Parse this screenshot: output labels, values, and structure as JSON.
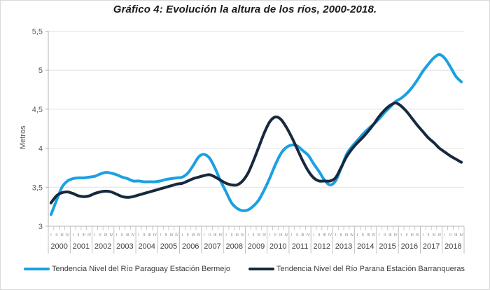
{
  "title": "Gráfico 4: Evolución la altura de los ríos, 2000-2018.",
  "chart_data": {
    "type": "line",
    "title": "Gráfico 4: Evolución la altura de los ríos, 2000-2018.",
    "ylabel": "Metros",
    "ylim": [
      3,
      5.5
    ],
    "ytick_step": 0.5,
    "ytick_labels_top_to_bottom": [
      "5,5",
      "5",
      "4,5",
      "4",
      "3,5",
      "3"
    ],
    "grid": "horizontal",
    "legend_position": "bottom",
    "x_unit": "quarterly, 4 points per year",
    "years": [
      "2000",
      "2001",
      "2002",
      "2003",
      "2004",
      "2005",
      "2006",
      "2007",
      "2008",
      "2009",
      "2010",
      "2011",
      "2012",
      "2013",
      "2014",
      "2015",
      "2016",
      "2017",
      "2018"
    ],
    "quarter_labels": [
      "I",
      "II",
      "III",
      "IV"
    ],
    "series": [
      {
        "name": "Tendencia Nivel del Río Paraguay Estación Bermejo",
        "color": "#1BA0E2",
        "values": [
          3.15,
          3.33,
          3.5,
          3.58,
          3.61,
          3.62,
          3.62,
          3.63,
          3.64,
          3.67,
          3.69,
          3.68,
          3.66,
          3.63,
          3.61,
          3.58,
          3.58,
          3.57,
          3.57,
          3.57,
          3.58,
          3.6,
          3.61,
          3.62,
          3.63,
          3.68,
          3.78,
          3.89,
          3.92,
          3.87,
          3.74,
          3.58,
          3.44,
          3.3,
          3.23,
          3.2,
          3.21,
          3.26,
          3.34,
          3.47,
          3.62,
          3.79,
          3.93,
          4.01,
          4.04,
          4.03,
          3.97,
          3.91,
          3.8,
          3.7,
          3.59,
          3.53,
          3.58,
          3.74,
          3.92,
          4.02,
          4.1,
          4.18,
          4.25,
          4.31,
          4.38,
          4.46,
          4.53,
          4.6,
          4.64,
          4.7,
          4.78,
          4.88,
          4.99,
          5.08,
          5.16,
          5.2,
          5.15,
          5.04,
          4.92,
          4.85
        ]
      },
      {
        "name": "Tendencia Nivel del Río Parana Estación Barranqueras",
        "color": "#17293E",
        "values": [
          3.3,
          3.39,
          3.43,
          3.44,
          3.42,
          3.39,
          3.38,
          3.39,
          3.42,
          3.44,
          3.45,
          3.44,
          3.41,
          3.38,
          3.37,
          3.38,
          3.4,
          3.42,
          3.44,
          3.46,
          3.48,
          3.5,
          3.52,
          3.54,
          3.55,
          3.58,
          3.61,
          3.63,
          3.65,
          3.66,
          3.63,
          3.59,
          3.55,
          3.53,
          3.53,
          3.58,
          3.68,
          3.84,
          4.02,
          4.2,
          4.34,
          4.4,
          4.37,
          4.27,
          4.14,
          3.99,
          3.84,
          3.71,
          3.62,
          3.58,
          3.58,
          3.58,
          3.62,
          3.75,
          3.89,
          3.99,
          4.07,
          4.14,
          4.22,
          4.31,
          4.41,
          4.49,
          4.55,
          4.58,
          4.54,
          4.47,
          4.38,
          4.29,
          4.21,
          4.13,
          4.07,
          4.0,
          3.95,
          3.9,
          3.86,
          3.82
        ]
      }
    ],
    "colors": {
      "gridline": "#e2e2e2",
      "axis": "#b3b3b3",
      "tick_text": "#595959",
      "year_text": "#404040"
    }
  }
}
